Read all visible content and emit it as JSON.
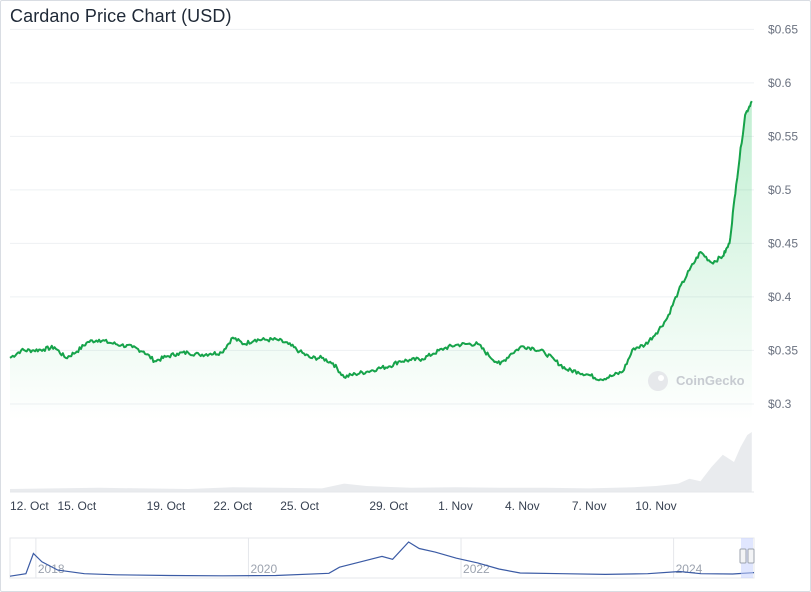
{
  "chart_data": {
    "type": "line",
    "title": "Cardano Price Chart (USD)",
    "series": [
      {
        "values": [
          [
            0,
            0.343
          ],
          [
            0.5,
            0.35
          ],
          [
            1,
            0.35
          ],
          [
            1.5,
            0.351
          ],
          [
            2,
            0.353
          ],
          [
            2.5,
            0.343
          ],
          [
            3,
            0.349
          ],
          [
            3.5,
            0.358
          ],
          [
            4,
            0.36
          ],
          [
            4.5,
            0.357
          ],
          [
            5,
            0.355
          ],
          [
            5.5,
            0.353
          ],
          [
            6,
            0.349
          ],
          [
            6.5,
            0.34
          ],
          [
            7,
            0.344
          ],
          [
            7.5,
            0.347
          ],
          [
            8,
            0.348
          ],
          [
            8.5,
            0.346
          ],
          [
            9,
            0.347
          ],
          [
            9.5,
            0.348
          ],
          [
            10,
            0.362
          ],
          [
            10.5,
            0.356
          ],
          [
            11,
            0.36
          ],
          [
            11.5,
            0.36
          ],
          [
            12,
            0.36
          ],
          [
            12.5,
            0.356
          ],
          [
            13,
            0.349
          ],
          [
            13.5,
            0.343
          ],
          [
            14,
            0.343
          ],
          [
            14.5,
            0.338
          ],
          [
            15,
            0.325
          ],
          [
            15.5,
            0.328
          ],
          [
            16,
            0.33
          ],
          [
            16.5,
            0.333
          ],
          [
            17,
            0.335
          ],
          [
            17.5,
            0.34
          ],
          [
            18,
            0.341
          ],
          [
            18.5,
            0.342
          ],
          [
            19,
            0.347
          ],
          [
            19.5,
            0.352
          ],
          [
            20,
            0.355
          ],
          [
            20.5,
            0.356
          ],
          [
            21,
            0.356
          ],
          [
            21.5,
            0.345
          ],
          [
            22,
            0.337
          ],
          [
            22.5,
            0.347
          ],
          [
            23,
            0.354
          ],
          [
            23.5,
            0.352
          ],
          [
            24,
            0.348
          ],
          [
            24.5,
            0.34
          ],
          [
            25,
            0.332
          ],
          [
            25.5,
            0.33
          ],
          [
            26,
            0.327
          ],
          [
            26.5,
            0.323
          ],
          [
            27,
            0.326
          ],
          [
            27.5,
            0.33
          ],
          [
            28,
            0.352
          ],
          [
            28.5,
            0.355
          ],
          [
            29,
            0.366
          ],
          [
            29.5,
            0.38
          ],
          [
            30,
            0.405
          ],
          [
            30.5,
            0.425
          ],
          [
            31,
            0.442
          ],
          [
            31.5,
            0.432
          ],
          [
            32,
            0.438
          ],
          [
            32.3,
            0.45
          ],
          [
            32.6,
            0.505
          ],
          [
            33,
            0.57
          ],
          [
            33.3,
            0.583
          ]
        ]
      }
    ],
    "volume": [
      [
        0,
        0.05
      ],
      [
        2,
        0.06
      ],
      [
        4,
        0.07
      ],
      [
        6,
        0.06
      ],
      [
        8,
        0.05
      ],
      [
        10,
        0.08
      ],
      [
        12,
        0.07
      ],
      [
        14,
        0.06
      ],
      [
        15,
        0.14
      ],
      [
        16,
        0.1
      ],
      [
        18,
        0.07
      ],
      [
        20,
        0.08
      ],
      [
        22,
        0.07
      ],
      [
        24,
        0.07
      ],
      [
        26,
        0.06
      ],
      [
        28,
        0.08
      ],
      [
        29,
        0.1
      ],
      [
        30,
        0.14
      ],
      [
        30.5,
        0.22
      ],
      [
        31,
        0.18
      ],
      [
        31.5,
        0.42
      ],
      [
        32,
        0.62
      ],
      [
        32.5,
        0.5
      ],
      [
        32.8,
        0.75
      ],
      [
        33.1,
        0.95
      ],
      [
        33.3,
        1.0
      ]
    ],
    "x_ticks": [
      {
        "x": 0,
        "label": "12. Oct"
      },
      {
        "x": 3,
        "label": "15. Oct"
      },
      {
        "x": 7,
        "label": "19. Oct"
      },
      {
        "x": 10,
        "label": "22. Oct"
      },
      {
        "x": 13,
        "label": "25. Oct"
      },
      {
        "x": 17,
        "label": "29. Oct"
      },
      {
        "x": 20,
        "label": "1. Nov"
      },
      {
        "x": 23,
        "label": "4. Nov"
      },
      {
        "x": 26,
        "label": "7. Nov"
      },
      {
        "x": 29,
        "label": "10. Nov"
      }
    ],
    "y_ticks": [
      {
        "v": 0.3,
        "label": "$0.3"
      },
      {
        "v": 0.35,
        "label": "$0.35"
      },
      {
        "v": 0.4,
        "label": "$0.4"
      },
      {
        "v": 0.45,
        "label": "$0.45"
      },
      {
        "v": 0.5,
        "label": "$0.5"
      },
      {
        "v": 0.55,
        "label": "$0.55"
      },
      {
        "v": 0.6,
        "label": "$0.6"
      },
      {
        "v": 0.65,
        "label": "$0.65"
      }
    ],
    "ylim": [
      0.285,
      0.655
    ],
    "xlim": [
      0,
      33.4
    ],
    "grid": true,
    "navigator": {
      "labels": [
        "2018",
        "2020",
        "2022",
        "2024"
      ],
      "label_x": [
        0.3,
        2.3,
        4.3,
        6.3
      ],
      "xlim": [
        0,
        7.0
      ],
      "values": [
        [
          0,
          0.05
        ],
        [
          0.15,
          0.12
        ],
        [
          0.22,
          0.68
        ],
        [
          0.3,
          0.45
        ],
        [
          0.45,
          0.22
        ],
        [
          0.7,
          0.12
        ],
        [
          1.0,
          0.09
        ],
        [
          1.5,
          0.07
        ],
        [
          2.0,
          0.06
        ],
        [
          2.5,
          0.07
        ],
        [
          3.0,
          0.13
        ],
        [
          3.1,
          0.3
        ],
        [
          3.3,
          0.45
        ],
        [
          3.5,
          0.6
        ],
        [
          3.6,
          0.52
        ],
        [
          3.75,
          1.0
        ],
        [
          3.85,
          0.82
        ],
        [
          4.0,
          0.72
        ],
        [
          4.2,
          0.55
        ],
        [
          4.4,
          0.42
        ],
        [
          4.6,
          0.25
        ],
        [
          4.8,
          0.14
        ],
        [
          5.2,
          0.12
        ],
        [
          5.6,
          0.1
        ],
        [
          6.0,
          0.12
        ],
        [
          6.3,
          0.18
        ],
        [
          6.5,
          0.12
        ],
        [
          6.8,
          0.11
        ],
        [
          7.0,
          0.15
        ]
      ]
    },
    "watermark": "CoinGecko",
    "line_color": "#16a34a",
    "area_color": "#22c55e",
    "volume_color": "#e5e7eb",
    "navigator_color": "#3b5ba5"
  }
}
